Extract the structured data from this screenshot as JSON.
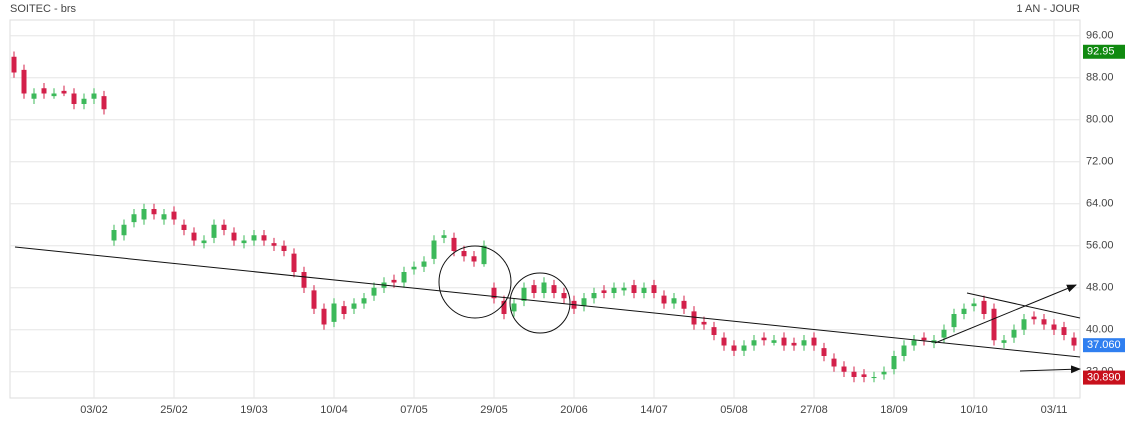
{
  "chart_data": {
    "type": "candlestick",
    "title": "SOITEC - brs",
    "period": "1 AN - JOUR",
    "up_color": "#3cb95a",
    "down_color": "#d3204a",
    "grid": true,
    "ylim": [
      27,
      99
    ],
    "yticks": [
      {
        "value": 32,
        "label": "32.00"
      },
      {
        "value": 40,
        "label": "40.00"
      },
      {
        "value": 48,
        "label": "48.00"
      },
      {
        "value": 56,
        "label": "56.00"
      },
      {
        "value": 64,
        "label": "64.00"
      },
      {
        "value": 72,
        "label": "72.00"
      },
      {
        "value": 80,
        "label": "80.00"
      },
      {
        "value": 88,
        "label": "88.00"
      },
      {
        "value": 96,
        "label": "96.00"
      }
    ],
    "price_tags": [
      {
        "value": 92.95,
        "label": "92.95",
        "color": "#108a10"
      },
      {
        "value": 37.06,
        "label": "37.060",
        "color": "#2f7ff0"
      },
      {
        "value": 30.89,
        "label": "30.890",
        "color": "#c8101c"
      }
    ],
    "categories": [
      null,
      null,
      null,
      null,
      null,
      null,
      null,
      null,
      "03/02",
      null,
      null,
      null,
      null,
      null,
      null,
      null,
      "25/02",
      null,
      null,
      null,
      null,
      null,
      null,
      null,
      "19/03",
      null,
      null,
      null,
      null,
      null,
      null,
      null,
      "10/04",
      null,
      null,
      null,
      null,
      null,
      null,
      null,
      "07/05",
      null,
      null,
      null,
      null,
      null,
      null,
      null,
      "29/05",
      null,
      null,
      null,
      null,
      null,
      null,
      null,
      "20/06",
      null,
      null,
      null,
      null,
      null,
      null,
      null,
      "14/07",
      null,
      null,
      null,
      null,
      null,
      null,
      null,
      "05/08",
      null,
      null,
      null,
      null,
      null,
      null,
      null,
      "27/08",
      null,
      null,
      null,
      null,
      null,
      null,
      null,
      "18/09",
      null,
      null,
      null,
      null,
      null,
      null,
      null,
      "10/10",
      null,
      null,
      null,
      null,
      null,
      null,
      null,
      "03/11",
      null,
      null
    ],
    "open": [
      92,
      89.5,
      84,
      86,
      84.5,
      85.5,
      85,
      83,
      84,
      84.5,
      57,
      58,
      60.5,
      61,
      63,
      61,
      62.5,
      60,
      58.5,
      56.5,
      57.5,
      60,
      58.5,
      56.5,
      57,
      58,
      56.5,
      56,
      54.5,
      51,
      47.5,
      44,
      41.5,
      44.5,
      44,
      45,
      46.5,
      48,
      49.5,
      49,
      51.5,
      52,
      53.5,
      57.5,
      57.5,
      55,
      54,
      52.5,
      48,
      45.5,
      43.5,
      45.5,
      48.5,
      47,
      48.5,
      47,
      45.5,
      44.5,
      46,
      47.5,
      47,
      47.5,
      48.5,
      47,
      48.5,
      46.5,
      45,
      45.5,
      43.5,
      41.5,
      40.5,
      38.5,
      37,
      36,
      37,
      38.5,
      37.5,
      38.5,
      37.5,
      37,
      38.5,
      36.5,
      34.5,
      33,
      32,
      31.5,
      30.8,
      31.5,
      32.5,
      35,
      37,
      38.5,
      37.5,
      38.5,
      40.5,
      43,
      44.5,
      45.5,
      44,
      37.5,
      38.5,
      40,
      42.5,
      42,
      41,
      40.5,
      38.5
    ],
    "high": [
      93,
      90.5,
      86,
      87,
      86,
      86.5,
      86,
      85,
      86,
      85.5,
      60,
      61,
      63,
      64,
      64,
      63,
      63.5,
      61,
      59.5,
      58,
      61,
      61,
      59.5,
      58,
      59,
      59,
      57.5,
      57,
      55.5,
      52,
      48.5,
      45,
      46,
      45.5,
      46,
      47,
      49,
      50,
      50.5,
      52,
      53,
      54,
      58,
      59,
      58.5,
      56,
      55,
      57,
      49,
      46.5,
      46,
      49,
      49.5,
      50,
      49.5,
      48,
      46.5,
      47,
      48,
      48.5,
      49,
      49,
      49.5,
      49,
      49.5,
      47.5,
      47,
      46.5,
      44.5,
      42.5,
      41.5,
      39.5,
      38,
      38,
      39,
      39.5,
      39,
      39.5,
      38.5,
      39,
      39.5,
      37.5,
      35.5,
      34,
      33,
      32.5,
      32,
      33,
      36,
      38,
      39,
      39.5,
      39,
      41,
      44,
      45,
      46,
      46.5,
      45,
      39,
      41,
      43,
      43.5,
      43,
      42,
      41.5,
      39.5
    ],
    "low": [
      88,
      84,
      83,
      84,
      84,
      84.5,
      82,
      82,
      83,
      81,
      56,
      57,
      59.5,
      60,
      61,
      60,
      60,
      58,
      56,
      55.5,
      56.5,
      58,
      56,
      55.5,
      56,
      56,
      55,
      54,
      50,
      47,
      43,
      40,
      40.5,
      42,
      43,
      44,
      45.5,
      47,
      48,
      48,
      50.5,
      51,
      52.5,
      56.5,
      54,
      53,
      52,
      52,
      45,
      42,
      42.5,
      44.5,
      46,
      46,
      46,
      45,
      43,
      43.5,
      45,
      46,
      46,
      46.5,
      46,
      46,
      46,
      44,
      44,
      43,
      40,
      40,
      38,
      36,
      35,
      35,
      36,
      37,
      37,
      36,
      36,
      36,
      36,
      34,
      32,
      31,
      30,
      30,
      30,
      30.5,
      31.5,
      34,
      36,
      37,
      36.5,
      37.5,
      39.5,
      42,
      43.5,
      42,
      37,
      36.5,
      37.5,
      39,
      41,
      40,
      39,
      38,
      36
    ],
    "close": [
      89,
      85,
      85,
      85,
      85,
      85,
      83,
      84,
      85,
      82,
      59,
      60,
      62,
      63,
      62,
      62,
      61,
      59,
      57,
      57,
      60,
      59,
      57,
      57,
      58,
      57,
      56,
      55,
      51,
      48,
      44,
      41,
      45,
      43,
      45,
      46,
      48,
      49,
      49,
      51,
      52,
      53,
      57,
      58,
      55,
      54,
      53,
      56,
      46,
      43,
      45,
      48,
      47,
      49,
      47,
      46,
      44,
      46,
      47,
      47,
      48,
      48,
      47,
      48,
      47,
      45,
      46,
      44,
      41,
      41,
      39,
      37,
      36,
      37,
      38,
      38,
      38,
      37,
      37,
      38,
      37,
      35,
      33,
      32,
      31,
      31,
      31,
      32,
      35,
      37,
      38,
      38,
      38,
      40,
      43,
      44,
      45,
      43,
      38,
      38,
      40,
      42,
      42,
      41,
      40,
      39,
      37
    ]
  }
}
